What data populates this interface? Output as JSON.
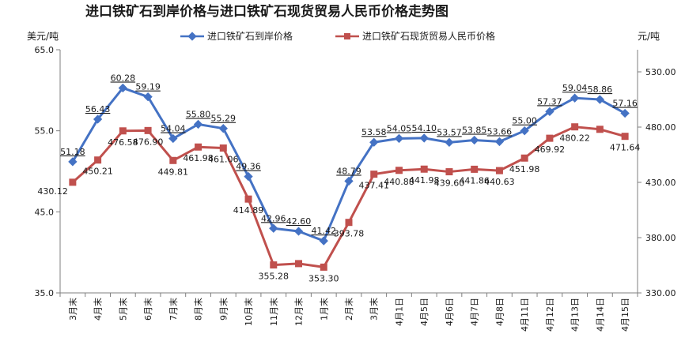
{
  "chart_data": {
    "type": "line",
    "title": "进口铁矿石到岸价格与进口铁矿石现货贸易人民币价格走势图",
    "left_unit": "美元/吨",
    "right_unit": "元/吨",
    "left_ylim": [
      35,
      65
    ],
    "left_ticks": [
      "35.0",
      "45.0",
      "55.0",
      "65.0"
    ],
    "right_ylim": [
      330,
      550
    ],
    "right_ticks": [
      "330.00",
      "380.00",
      "430.00",
      "480.00",
      "530.00"
    ],
    "legend_placement": "top",
    "categories": [
      "3月末",
      "4月末",
      "5月末",
      "6月末",
      "7月末",
      "8月末",
      "9月末",
      "10月末",
      "11月末",
      "12月末",
      "1月末",
      "2月末",
      "3月末",
      "4月1日",
      "4月5日",
      "4月6日",
      "4月7日",
      "4月8日",
      "4月11日",
      "4月12日",
      "4月13日",
      "4月14日",
      "4月15日"
    ],
    "series": [
      {
        "name": "进口铁矿石到岸价格",
        "axis": "left",
        "color": "#4472C4",
        "marker": "diamond",
        "values": [
          51.18,
          56.43,
          60.28,
          59.19,
          54.04,
          55.8,
          55.29,
          49.36,
          42.96,
          42.6,
          41.42,
          48.79,
          53.58,
          54.05,
          54.1,
          53.57,
          53.85,
          53.66,
          55.0,
          57.37,
          59.04,
          58.86,
          57.16
        ],
        "labels": [
          "51.18",
          "56.43",
          "60.28",
          "59.19",
          "54.04",
          "55.80",
          "55.29",
          "49.36",
          "42.96",
          "42.60",
          "41.42",
          "48.79",
          "53.58",
          "54.05",
          "54.10",
          "53.57",
          "53.85",
          "53.66",
          "55.00",
          "57.37",
          "59.04",
          "58.86",
          "57.16"
        ]
      },
      {
        "name": "进口铁矿石现货贸易人民币价格",
        "axis": "right",
        "color": "#C0504D",
        "marker": "square",
        "values": [
          430.12,
          450.21,
          476.58,
          476.9,
          449.81,
          461.98,
          461.06,
          414.89,
          355.28,
          356.5,
          353.3,
          393.78,
          437.41,
          440.88,
          441.98,
          439.6,
          441.86,
          440.63,
          451.98,
          469.92,
          480.22,
          478.0,
          471.64
        ],
        "labels": [
          "430.12",
          "450.21",
          "476.58",
          "476.90",
          "449.81",
          "461.98",
          "461.06",
          "414.89",
          "355.28",
          "",
          "353.30",
          "393.78",
          "437.41",
          "440.88",
          "441.98",
          "439.60",
          "441.86",
          "440.63",
          "451.98",
          "469.92",
          "480.22",
          "",
          "471.64"
        ]
      }
    ]
  }
}
